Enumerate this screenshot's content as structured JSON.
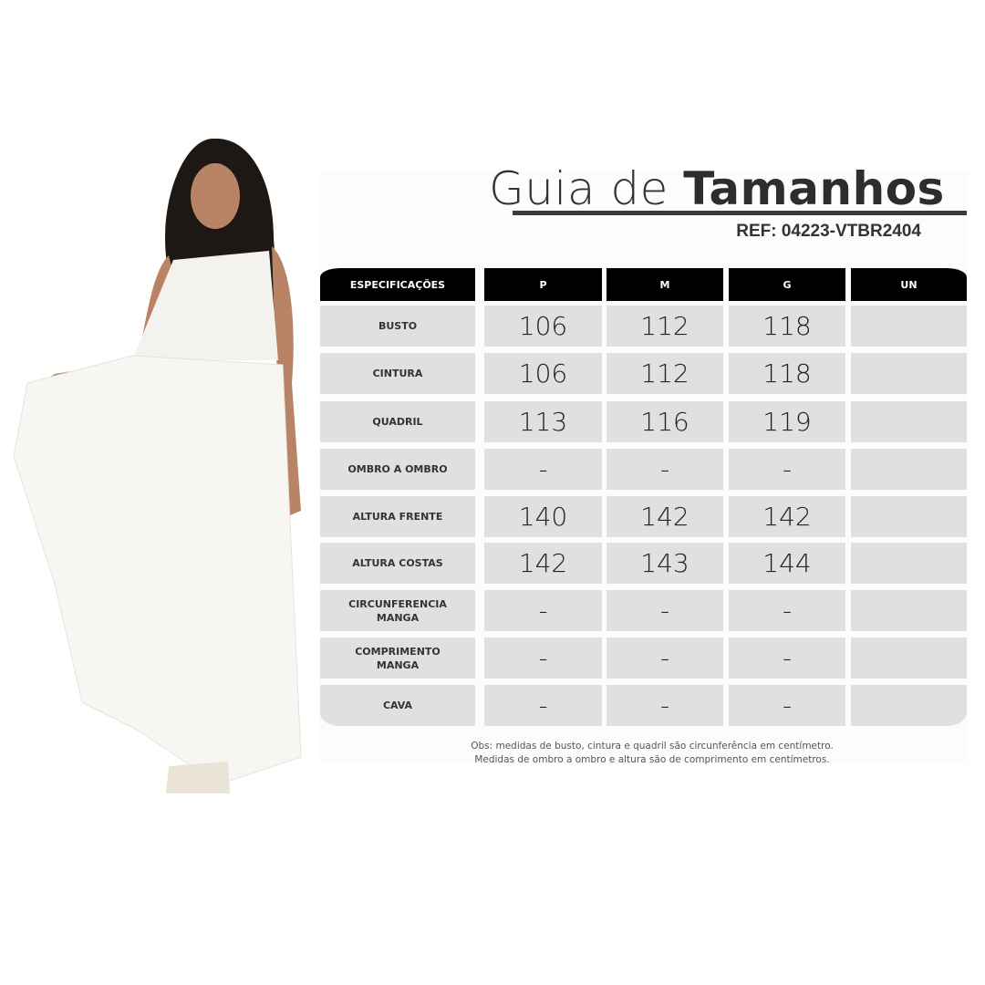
{
  "title": {
    "light": "Guia de",
    "bold": "Tamanhos"
  },
  "ref": "REF: 04223-VTBR2404",
  "table": {
    "headers": [
      "ESPECIFICAÇÕES",
      "P",
      "M",
      "G",
      "UN"
    ],
    "rows": [
      {
        "label": "BUSTO",
        "values": [
          "106",
          "112",
          "118",
          ""
        ]
      },
      {
        "label": "CINTURA",
        "values": [
          "106",
          "112",
          "118",
          ""
        ]
      },
      {
        "label": "QUADRIL",
        "values": [
          "113",
          "116",
          "119",
          ""
        ]
      },
      {
        "label": "OMBRO A OMBRO",
        "values": [
          "-",
          "-",
          "-",
          ""
        ]
      },
      {
        "label": "ALTURA FRENTE",
        "values": [
          "140",
          "142",
          "142",
          ""
        ]
      },
      {
        "label": "ALTURA COSTAS",
        "values": [
          "142",
          "143",
          "144",
          ""
        ]
      },
      {
        "label": "CIRCUNFERENCIA MANGA",
        "values": [
          "-",
          "-",
          "-",
          ""
        ]
      },
      {
        "label": "COMPRIMENTO MANGA",
        "values": [
          "-",
          "-",
          "-",
          ""
        ]
      },
      {
        "label": "CAVA",
        "values": [
          "-",
          "-",
          "-",
          ""
        ]
      }
    ]
  },
  "notes": [
    "Obs: medidas de busto, cintura e quadril são circunferência em centímetro.",
    "Medidas de ombro a ombro e altura são de comprimento em centímetros."
  ],
  "colors": {
    "header": "#000000",
    "cell": "#e0e0e0",
    "text": "#333333"
  }
}
